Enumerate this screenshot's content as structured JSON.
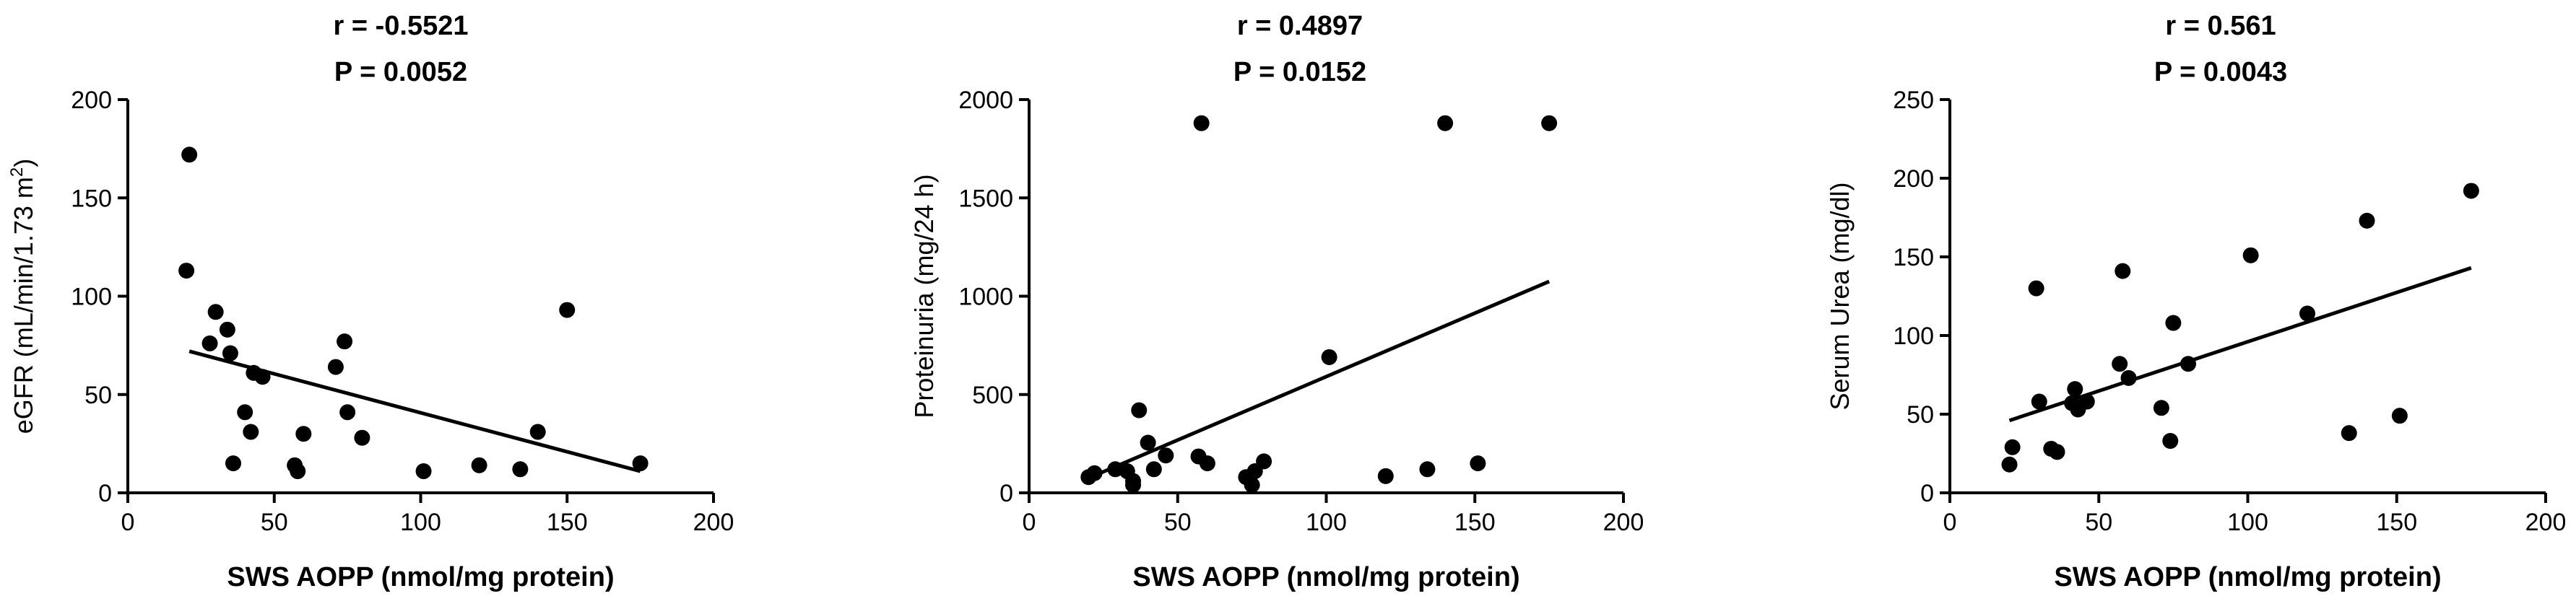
{
  "chart_data": [
    {
      "type": "scatter",
      "stats": {
        "r": "r = -0.5521",
        "p": "P = 0.0052"
      },
      "xlabel": "SWS AOPP (nmol/mg protein)",
      "ylabel": "eGFR (mL/min/1.73 m",
      "ylabel_sup": "2",
      "ylabel_close": ")",
      "xlim": [
        0,
        200
      ],
      "ylim": [
        0,
        200
      ],
      "xticks": [
        0,
        50,
        100,
        150,
        200
      ],
      "yticks": [
        0,
        50,
        100,
        150,
        200
      ],
      "points": [
        [
          21,
          172
        ],
        [
          20,
          113
        ],
        [
          30,
          92
        ],
        [
          28,
          76
        ],
        [
          34,
          83
        ],
        [
          35,
          71
        ],
        [
          36,
          15
        ],
        [
          40,
          41
        ],
        [
          42,
          31
        ],
        [
          43,
          61
        ],
        [
          46,
          59
        ],
        [
          57,
          14
        ],
        [
          58,
          11
        ],
        [
          60,
          30
        ],
        [
          71,
          64
        ],
        [
          74,
          77
        ],
        [
          75,
          41
        ],
        [
          80,
          28
        ],
        [
          101,
          11
        ],
        [
          120,
          14
        ],
        [
          134,
          12
        ],
        [
          140,
          31
        ],
        [
          150,
          93
        ],
        [
          175,
          15
        ]
      ],
      "fit": {
        "x": [
          21,
          175
        ],
        "y": [
          72,
          11
        ]
      }
    },
    {
      "type": "scatter",
      "stats": {
        "r": "r = 0.4897",
        "p": "P = 0.0152"
      },
      "xlabel": "SWS AOPP (nmol/mg protein)",
      "ylabel": "Proteinuria (mg/24 h)",
      "ylabel_sup": "",
      "ylabel_close": "",
      "xlim": [
        0,
        200
      ],
      "ylim": [
        0,
        2000
      ],
      "xticks": [
        0,
        50,
        100,
        150,
        200
      ],
      "yticks": [
        0,
        500,
        1000,
        1500,
        2000
      ],
      "points": [
        [
          20,
          80
        ],
        [
          22,
          100
        ],
        [
          29,
          120
        ],
        [
          33,
          110
        ],
        [
          35,
          60
        ],
        [
          35,
          40
        ],
        [
          37,
          420
        ],
        [
          40,
          255
        ],
        [
          42,
          120
        ],
        [
          46,
          190
        ],
        [
          57,
          185
        ],
        [
          58,
          1880
        ],
        [
          60,
          150
        ],
        [
          73,
          80
        ],
        [
          75,
          40
        ],
        [
          76,
          110
        ],
        [
          79,
          160
        ],
        [
          101,
          690
        ],
        [
          120,
          85
        ],
        [
          134,
          120
        ],
        [
          140,
          1880
        ],
        [
          151,
          150
        ],
        [
          175,
          1880
        ]
      ],
      "fit": {
        "x": [
          20,
          175
        ],
        "y": [
          75,
          1075
        ]
      }
    },
    {
      "type": "scatter",
      "stats": {
        "r": "r = 0.561",
        "p": "P = 0.0043"
      },
      "xlabel": "SWS AOPP (nmol/mg protein)",
      "ylabel": "Serum Urea (mg/dl)",
      "ylabel_sup": "",
      "ylabel_close": "",
      "xlim": [
        0,
        200
      ],
      "ylim": [
        0,
        250
      ],
      "xticks": [
        0,
        50,
        100,
        150,
        200
      ],
      "yticks": [
        0,
        50,
        100,
        150,
        200,
        250
      ],
      "points": [
        [
          20,
          18
        ],
        [
          21,
          29
        ],
        [
          29,
          130
        ],
        [
          30,
          58
        ],
        [
          34,
          28
        ],
        [
          36,
          26
        ],
        [
          41,
          57
        ],
        [
          42,
          66
        ],
        [
          43,
          53
        ],
        [
          46,
          58
        ],
        [
          57,
          82
        ],
        [
          58,
          141
        ],
        [
          60,
          73
        ],
        [
          71,
          54
        ],
        [
          74,
          33
        ],
        [
          75,
          108
        ],
        [
          80,
          82
        ],
        [
          101,
          151
        ],
        [
          120,
          114
        ],
        [
          134,
          38
        ],
        [
          140,
          173
        ],
        [
          151,
          49
        ],
        [
          175,
          192
        ]
      ],
      "fit": {
        "x": [
          20,
          175
        ],
        "y": [
          46,
          143
        ]
      }
    }
  ]
}
